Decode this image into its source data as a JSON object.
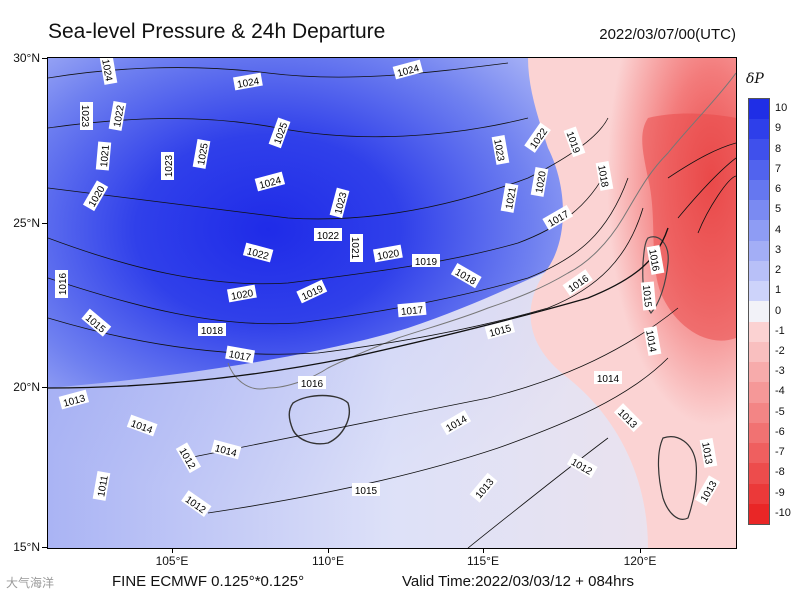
{
  "header": {
    "title": "Sea-level Pressure & 24h Departure",
    "datetime": "2022/03/07/00(UTC)"
  },
  "map": {
    "lat_labels": [
      "30°N",
      "25°N",
      "20°N",
      "15°N"
    ],
    "lon_labels": [
      "105°E",
      "110°E",
      "115°E",
      "120°E"
    ],
    "isobar_labels": [
      "1024",
      "1024",
      "1024",
      "1023",
      "1022",
      "1021",
      "1020",
      "1023",
      "1025",
      "1025",
      "1024",
      "1023",
      "1022",
      "1021",
      "1020",
      "1019",
      "1018",
      "1017",
      "1016",
      "1015",
      "1014",
      "1013",
      "1012",
      "1011",
      "1020",
      "1019",
      "1018",
      "1017",
      "1016",
      "1015",
      "1014",
      "1013",
      "1012",
      "1022",
      "1023",
      "1022",
      "1021",
      "1020",
      "1019",
      "1018",
      "1017",
      "1016",
      "1015",
      "1014",
      "1013",
      "1013",
      "1014",
      "1012",
      "1015",
      "1016",
      "1014",
      "1013"
    ],
    "land_labels": []
  },
  "colorbar": {
    "title": "δP",
    "labels": [
      "10",
      "9",
      "8",
      "7",
      "6",
      "5",
      "4",
      "3",
      "2",
      "1",
      "0",
      "-1",
      "-2",
      "-3",
      "-4",
      "-5",
      "-6",
      "-7",
      "-8",
      "-9",
      "-10"
    ],
    "colors": [
      "#1f2ee6",
      "#2e3fea",
      "#3f50ec",
      "#5163ee",
      "#6577f0",
      "#7a8af2",
      "#8e9cf4",
      "#a3aef6",
      "#b8c0f8",
      "#cdd3fa",
      "#f2f2f8",
      "#fbd2d2",
      "#f9bfbf",
      "#f7abab",
      "#f59898",
      "#f38585",
      "#f17272",
      "#ef5f5f",
      "#ed4c4c",
      "#eb3939",
      "#e92626"
    ]
  },
  "footer": {
    "model": "FINE ECMWF 0.125°*0.125°",
    "valid_time": "Valid Time:2022/03/03/12 + 084hrs",
    "watermark": "大气海洋"
  }
}
